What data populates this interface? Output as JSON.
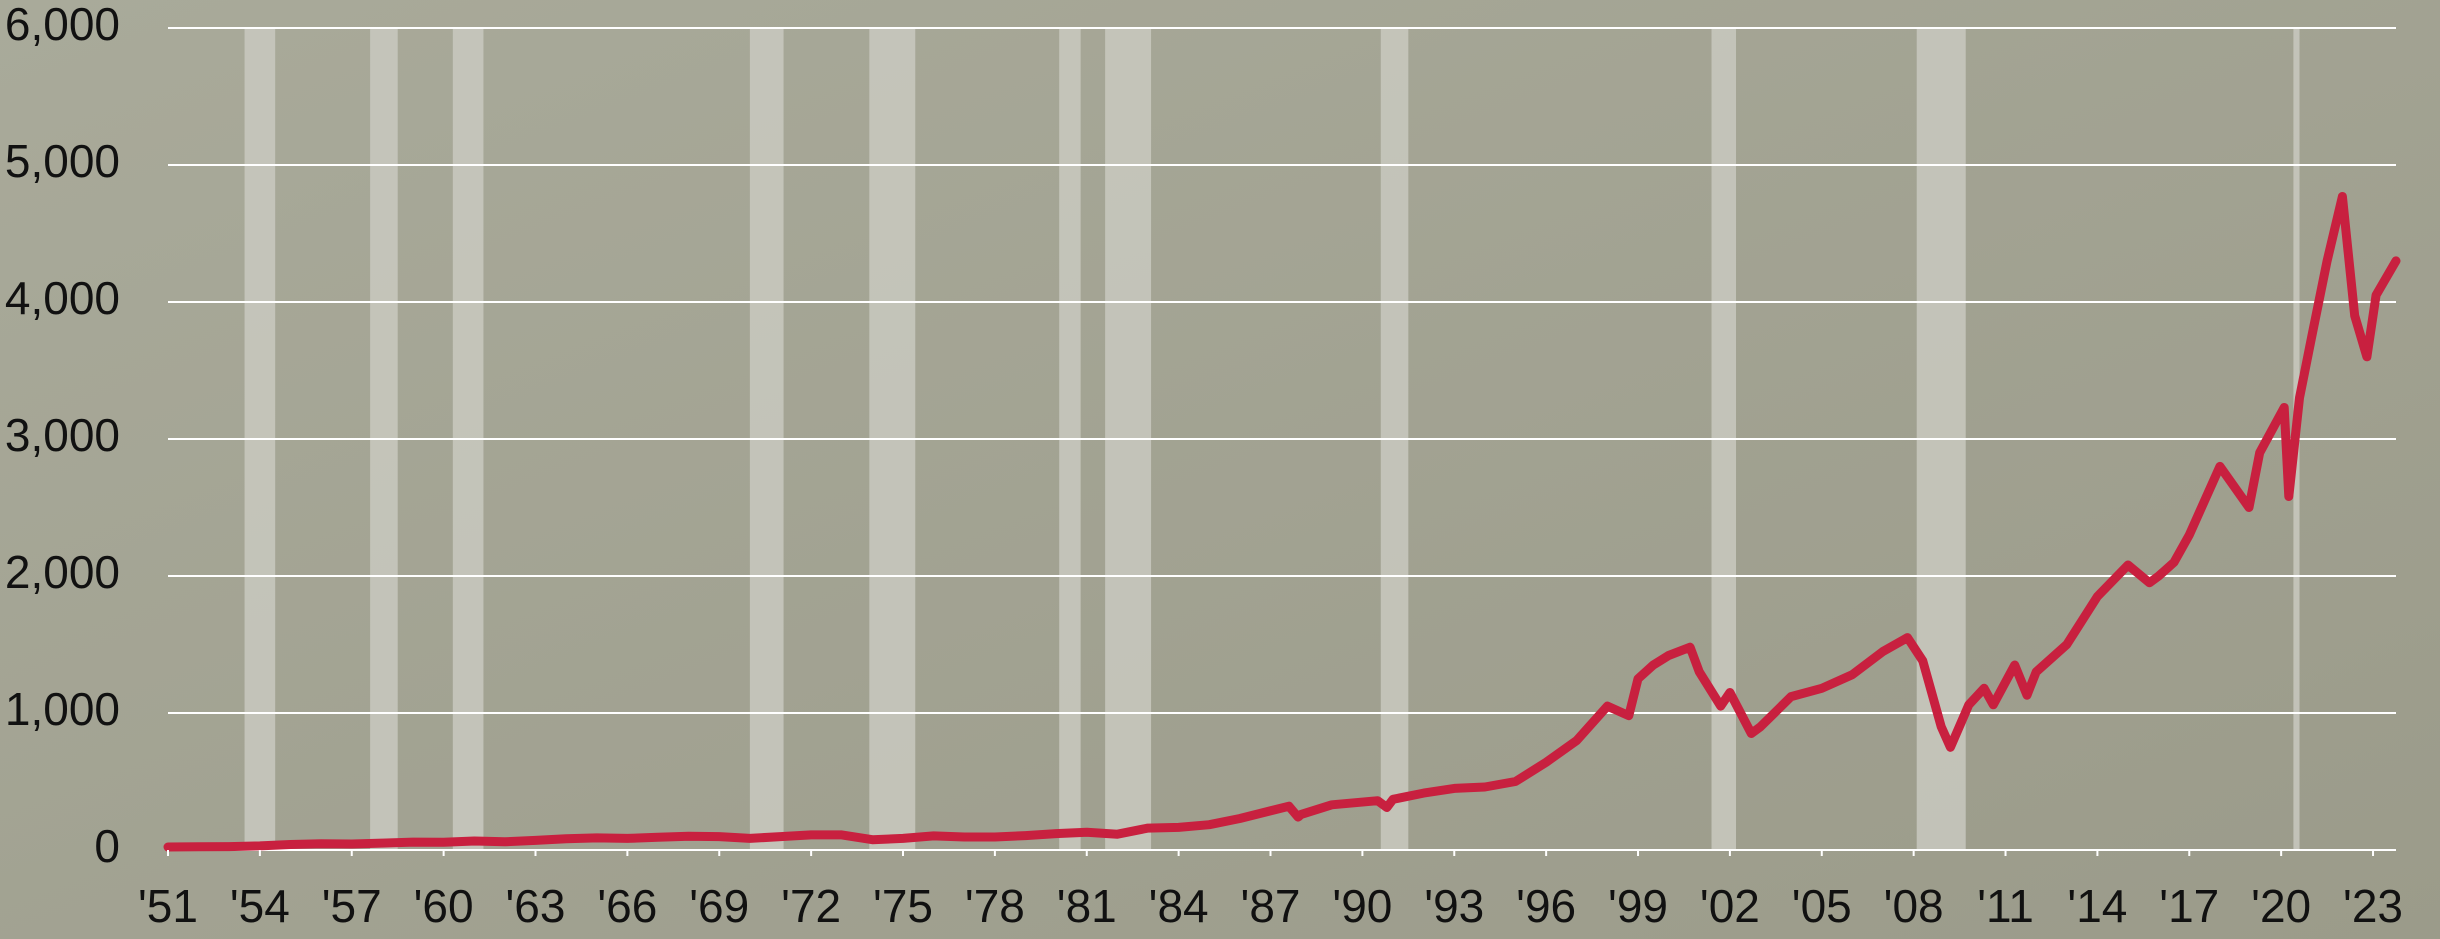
{
  "chart_data": {
    "type": "line",
    "x": [
      1951,
      1952,
      1953,
      1954,
      1955,
      1956,
      1957,
      1958,
      1959,
      1960,
      1961,
      1962,
      1963,
      1964,
      1965,
      1966,
      1967,
      1968,
      1969,
      1970,
      1971,
      1972,
      1973,
      1974,
      1975,
      1976,
      1977,
      1978,
      1979,
      1980,
      1981,
      1982,
      1983,
      1984,
      1985,
      1986,
      1987.6,
      1987.9,
      1988,
      1989,
      1990.5,
      1990.8,
      1991,
      1992,
      1993,
      1994,
      1995,
      1996,
      1997,
      1998,
      1998.7,
      1999,
      1999.5,
      2000,
      2000.7,
      2001,
      2001.7,
      2002,
      2002.7,
      2003,
      2004,
      2005,
      2006,
      2007,
      2007.8,
      2008.3,
      2008.9,
      2009.2,
      2009.8,
      2010.3,
      2010.6,
      2011.3,
      2011.7,
      2012,
      2013,
      2014,
      2015,
      2015.7,
      2016,
      2016.5,
      2017,
      2018,
      2018.95,
      2019.3,
      2020.1,
      2020.25,
      2020.6,
      2021,
      2021.5,
      2022,
      2022.4,
      2022.8,
      2023.1,
      2023.75
    ],
    "values": [
      22,
      24,
      25,
      30,
      40,
      46,
      44,
      50,
      58,
      56,
      66,
      60,
      70,
      82,
      88,
      85,
      93,
      100,
      98,
      85,
      98,
      110,
      110,
      75,
      85,
      103,
      95,
      95,
      105,
      120,
      130,
      115,
      160,
      165,
      185,
      230,
      320,
      240,
      260,
      330,
      360,
      310,
      370,
      415,
      450,
      460,
      500,
      640,
      800,
      1050,
      980,
      1250,
      1350,
      1420,
      1480,
      1300,
      1050,
      1150,
      850,
      900,
      1120,
      1180,
      1280,
      1450,
      1550,
      1380,
      900,
      750,
      1060,
      1180,
      1060,
      1350,
      1130,
      1300,
      1500,
      1850,
      2080,
      1950,
      2000,
      2100,
      2300,
      2800,
      2500,
      2900,
      3230,
      2580,
      3300,
      3750,
      4300,
      4770,
      3900,
      3600,
      4050,
      4300
    ],
    "color": "#c8203f",
    "recessions": [
      [
        1953.5,
        1954.5
      ],
      [
        1957.6,
        1958.5
      ],
      [
        1960.3,
        1961.3
      ],
      [
        1970.0,
        1971.1
      ],
      [
        1973.9,
        1975.4
      ],
      [
        1980.1,
        1980.8
      ],
      [
        1981.6,
        1983.1
      ],
      [
        1990.6,
        1991.5
      ],
      [
        2001.4,
        2002.2
      ],
      [
        2008.1,
        2009.7
      ],
      [
        2020.4,
        2020.6
      ]
    ],
    "xlim": [
      1951,
      2023.75
    ],
    "xticks": [
      {
        "value": 1951,
        "label": "'51"
      },
      {
        "value": 1954,
        "label": "'54"
      },
      {
        "value": 1957,
        "label": "'57"
      },
      {
        "value": 1960,
        "label": "'60"
      },
      {
        "value": 1963,
        "label": "'63"
      },
      {
        "value": 1966,
        "label": "'66"
      },
      {
        "value": 1969,
        "label": "'69"
      },
      {
        "value": 1972,
        "label": "'72"
      },
      {
        "value": 1975,
        "label": "'75"
      },
      {
        "value": 1978,
        "label": "'78"
      },
      {
        "value": 1981,
        "label": "'81"
      },
      {
        "value": 1984,
        "label": "'84"
      },
      {
        "value": 1987,
        "label": "'87"
      },
      {
        "value": 1990,
        "label": "'90"
      },
      {
        "value": 1993,
        "label": "'93"
      },
      {
        "value": 1996,
        "label": "'96"
      },
      {
        "value": 1999,
        "label": "'99"
      },
      {
        "value": 2002,
        "label": "'02"
      },
      {
        "value": 2005,
        "label": "'05"
      },
      {
        "value": 2008,
        "label": "'08"
      },
      {
        "value": 2011,
        "label": "'11"
      },
      {
        "value": 2014,
        "label": "'14"
      },
      {
        "value": 2017,
        "label": "'17"
      },
      {
        "value": 2020,
        "label": "'20"
      },
      {
        "value": 2023,
        "label": "'23"
      }
    ],
    "ylim": [
      0,
      6000
    ],
    "yticks": [
      0,
      {
        "value": 1000,
        "label": "1,000"
      },
      {
        "value": 2000,
        "label": "2,000"
      },
      {
        "value": 3000,
        "label": "3,000"
      },
      {
        "value": 4000,
        "label": "4,000"
      },
      {
        "value": 5000,
        "label": "5,000"
      },
      {
        "value": 6000,
        "label": "6,000"
      }
    ],
    "grid": true
  }
}
